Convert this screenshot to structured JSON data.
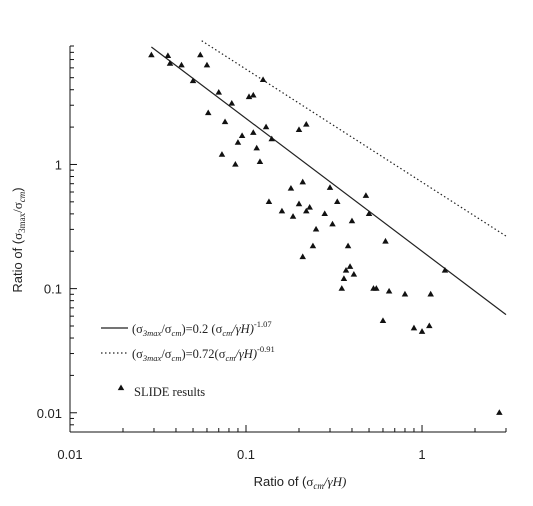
{
  "chart_data": {
    "type": "scatter",
    "xscale": "log",
    "yscale": "log",
    "xlim": [
      0.01,
      3
    ],
    "ylim": [
      0.007,
      9
    ],
    "xticks": [
      0.01,
      0.1,
      1
    ],
    "yticks": [
      0.01,
      0.1,
      1
    ],
    "xtick_labels": [
      "0.01",
      "0.1",
      "1"
    ],
    "ytick_labels": [
      "0.01",
      "0.1",
      "1"
    ],
    "xlabel_prefix": "Ratio of (",
    "xlabel_sigma": "σ",
    "xlabel_sub": "cm",
    "xlabel_suffix": "/γH)",
    "ylabel_prefix": "Ratio of (",
    "ylabel_sigma1": "σ",
    "ylabel_sub1": "3max",
    "ylabel_slash": "/",
    "ylabel_sigma2": "σ",
    "ylabel_sub2": "cm",
    "ylabel_suffix": ")",
    "grid": false,
    "legend_position": "bottom-left",
    "lines": [
      {
        "style": "solid",
        "coefficient": 0.2,
        "exponent": -1.07,
        "x_range": [
          0.029,
          3
        ],
        "legend_parts": [
          "(σ",
          "3max",
          "/σ",
          "cm",
          ")=0.2  (σ",
          "cm",
          "/γH)",
          "-1.07"
        ]
      },
      {
        "style": "dotted",
        "coefficient": 0.72,
        "exponent": -0.91,
        "x_range": [
          0.056,
          3
        ],
        "legend_parts": [
          "(σ",
          "3max",
          "/σ",
          "cm",
          ")=0.72(σ",
          "cm",
          "/γH)",
          "-0.91"
        ]
      }
    ],
    "series": [
      {
        "name": "SLIDE results",
        "marker": "triangle",
        "points": [
          [
            0.029,
            7.6
          ],
          [
            0.036,
            7.5
          ],
          [
            0.037,
            6.5
          ],
          [
            0.043,
            6.3
          ],
          [
            0.05,
            4.7
          ],
          [
            0.055,
            7.6
          ],
          [
            0.06,
            6.3
          ],
          [
            0.061,
            2.6
          ],
          [
            0.07,
            3.8
          ],
          [
            0.073,
            1.2
          ],
          [
            0.076,
            2.2
          ],
          [
            0.083,
            3.1
          ],
          [
            0.087,
            1.0
          ],
          [
            0.09,
            1.5
          ],
          [
            0.095,
            1.7
          ],
          [
            0.104,
            3.5
          ],
          [
            0.11,
            3.6
          ],
          [
            0.11,
            1.8
          ],
          [
            0.115,
            1.35
          ],
          [
            0.12,
            1.05
          ],
          [
            0.125,
            4.8
          ],
          [
            0.13,
            2.0
          ],
          [
            0.135,
            0.5
          ],
          [
            0.14,
            1.6
          ],
          [
            0.16,
            0.42
          ],
          [
            0.18,
            0.64
          ],
          [
            0.185,
            0.38
          ],
          [
            0.2,
            1.9
          ],
          [
            0.2,
            0.48
          ],
          [
            0.21,
            0.72
          ],
          [
            0.21,
            0.18
          ],
          [
            0.22,
            2.1
          ],
          [
            0.22,
            0.42
          ],
          [
            0.23,
            0.45
          ],
          [
            0.24,
            0.22
          ],
          [
            0.25,
            0.3
          ],
          [
            0.28,
            0.4
          ],
          [
            0.3,
            0.65
          ],
          [
            0.31,
            0.33
          ],
          [
            0.33,
            0.5
          ],
          [
            0.35,
            0.1
          ],
          [
            0.36,
            0.12
          ],
          [
            0.37,
            0.14
          ],
          [
            0.38,
            0.22
          ],
          [
            0.39,
            0.15
          ],
          [
            0.4,
            0.35
          ],
          [
            0.41,
            0.13
          ],
          [
            0.48,
            0.56
          ],
          [
            0.5,
            0.4
          ],
          [
            0.53,
            0.1
          ],
          [
            0.55,
            0.1
          ],
          [
            0.6,
            0.055
          ],
          [
            0.62,
            0.24
          ],
          [
            0.65,
            0.095
          ],
          [
            0.8,
            0.09
          ],
          [
            0.9,
            0.048
          ],
          [
            1.0,
            0.045
          ],
          [
            1.1,
            0.05
          ],
          [
            1.12,
            0.09
          ],
          [
            1.35,
            0.14
          ],
          [
            2.75,
            0.01
          ]
        ]
      }
    ]
  }
}
